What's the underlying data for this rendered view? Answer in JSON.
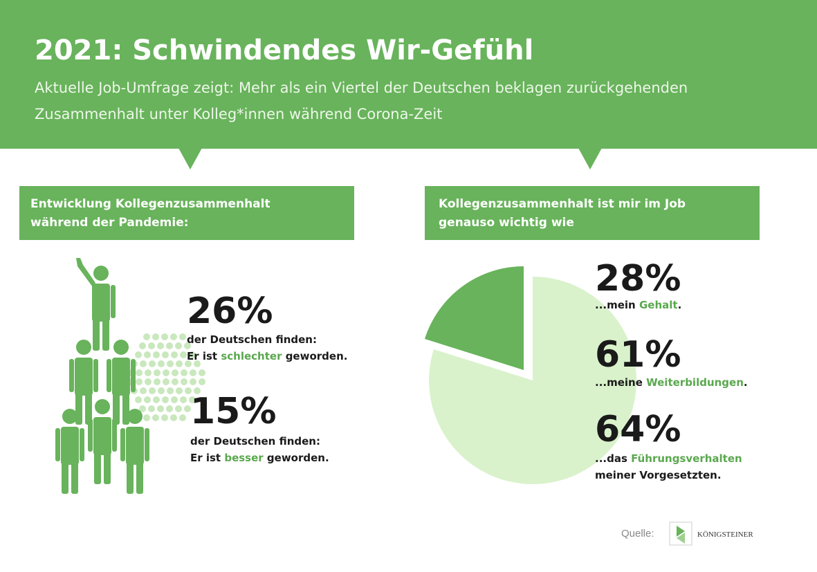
{
  "header": {
    "title": "2021: Schwindendes Wir-Gefühl",
    "subtitle": [
      "Aktuelle Job-Umfrage zeigt: Mehr als ein Viertel der Deutschen beklagen zurückgehenden",
      "Zusammenhalt unter Kolleg*innen während Corona-Zeit"
    ]
  },
  "left_panel": {
    "heading": [
      "Entwicklung Kollegenzusammenhalt",
      "während der Pandemie:"
    ],
    "stats": [
      {
        "figure": "26%",
        "lines": [
          [
            {
              "text": "der Deutschen finden:"
            }
          ],
          [
            {
              "text": "Er ist "
            },
            {
              "text": "schlechter",
              "highlight": true
            },
            {
              "text": " geworden."
            }
          ]
        ]
      },
      {
        "figure": "15%",
        "lines": [
          [
            {
              "text": "der Deutschen finden:"
            }
          ],
          [
            {
              "text": "Er ist "
            },
            {
              "text": "besser",
              "highlight": true
            },
            {
              "text": " geworden."
            }
          ]
        ]
      }
    ]
  },
  "right_panel": {
    "heading": [
      "Kollegenzusammenhalt ist mir im Job",
      "genauso wichtig wie"
    ],
    "stats": [
      {
        "figure": "28%",
        "lines": [
          [
            {
              "text": "...mein "
            },
            {
              "text": "Gehalt",
              "highlight": true
            },
            {
              "text": "."
            }
          ]
        ]
      },
      {
        "figure": "61%",
        "lines": [
          [
            {
              "text": "...meine "
            },
            {
              "text": "Weiterbildungen",
              "highlight": true
            },
            {
              "text": "."
            }
          ]
        ]
      },
      {
        "figure": "64%",
        "lines": [
          [
            {
              "text": "...das "
            },
            {
              "text": "Führungsverhalten",
              "highlight": true
            }
          ],
          [
            {
              "text": "meiner Vorgesetzten."
            }
          ]
        ]
      }
    ]
  },
  "footer": {
    "source_label": "Quelle:",
    "logo_text": "KÖNIGSTEINER"
  }
}
